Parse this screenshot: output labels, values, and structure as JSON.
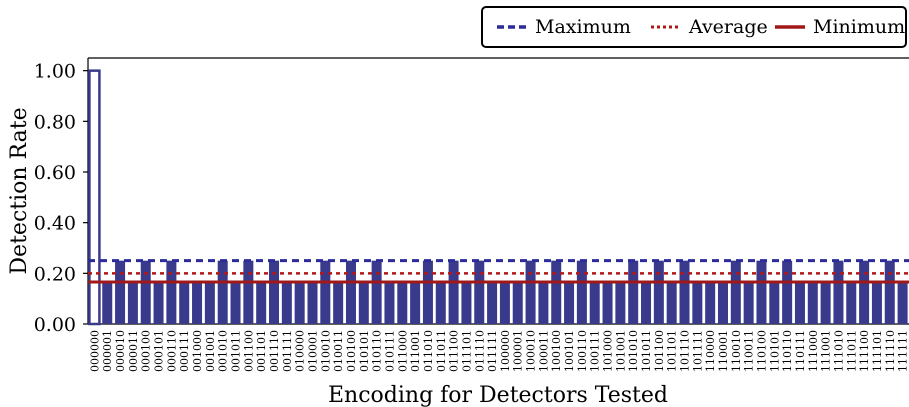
{
  "chart_data": {
    "type": "bar",
    "xlabel": "Encoding for Detectors Tested",
    "ylabel": "Detection Rate",
    "ylim": [
      0,
      1.05
    ],
    "yticks": [
      "0.00",
      "0.20",
      "0.40",
      "0.60",
      "0.80",
      "1.00"
    ],
    "bar_color": "#3a3a8c",
    "first_bar_color": "#ffffff",
    "first_bar_outline": "#3a3a8c",
    "categories": [
      "000000",
      "000001",
      "000010",
      "000011",
      "000100",
      "000101",
      "000110",
      "000111",
      "001000",
      "001001",
      "001010",
      "001011",
      "001100",
      "001101",
      "001110",
      "001111",
      "010000",
      "010001",
      "010010",
      "010011",
      "010100",
      "010101",
      "010110",
      "010111",
      "011000",
      "011001",
      "011010",
      "011011",
      "011100",
      "011101",
      "011110",
      "011111",
      "100000",
      "100001",
      "100010",
      "100011",
      "100100",
      "100101",
      "100110",
      "100111",
      "101000",
      "101001",
      "101010",
      "101011",
      "101100",
      "101101",
      "101110",
      "101111",
      "110000",
      "110001",
      "110010",
      "110011",
      "110100",
      "110101",
      "110110",
      "110111",
      "111000",
      "111001",
      "111010",
      "111011",
      "111100",
      "111101",
      "111110",
      "111111"
    ],
    "values": [
      1.0,
      0.166,
      0.25,
      0.166,
      0.25,
      0.166,
      0.25,
      0.166,
      0.166,
      0.166,
      0.25,
      0.166,
      0.25,
      0.166,
      0.25,
      0.166,
      0.166,
      0.166,
      0.25,
      0.166,
      0.25,
      0.166,
      0.25,
      0.166,
      0.166,
      0.166,
      0.25,
      0.166,
      0.25,
      0.166,
      0.25,
      0.166,
      0.166,
      0.166,
      0.25,
      0.166,
      0.25,
      0.166,
      0.25,
      0.166,
      0.166,
      0.166,
      0.25,
      0.166,
      0.25,
      0.166,
      0.25,
      0.166,
      0.166,
      0.166,
      0.25,
      0.166,
      0.25,
      0.166,
      0.25,
      0.166,
      0.166,
      0.166,
      0.25,
      0.166,
      0.25,
      0.166,
      0.25,
      0.166
    ],
    "reference_lines": [
      {
        "name": "Maximum",
        "value": 0.25,
        "style": "dashed",
        "color": "#2b2b9a"
      },
      {
        "name": "Average",
        "value": 0.2,
        "style": "dotted",
        "color": "#b01818"
      },
      {
        "name": "Minimum",
        "value": 0.166,
        "style": "solid",
        "color": "#a01818"
      }
    ],
    "legend_position": "top-right"
  }
}
